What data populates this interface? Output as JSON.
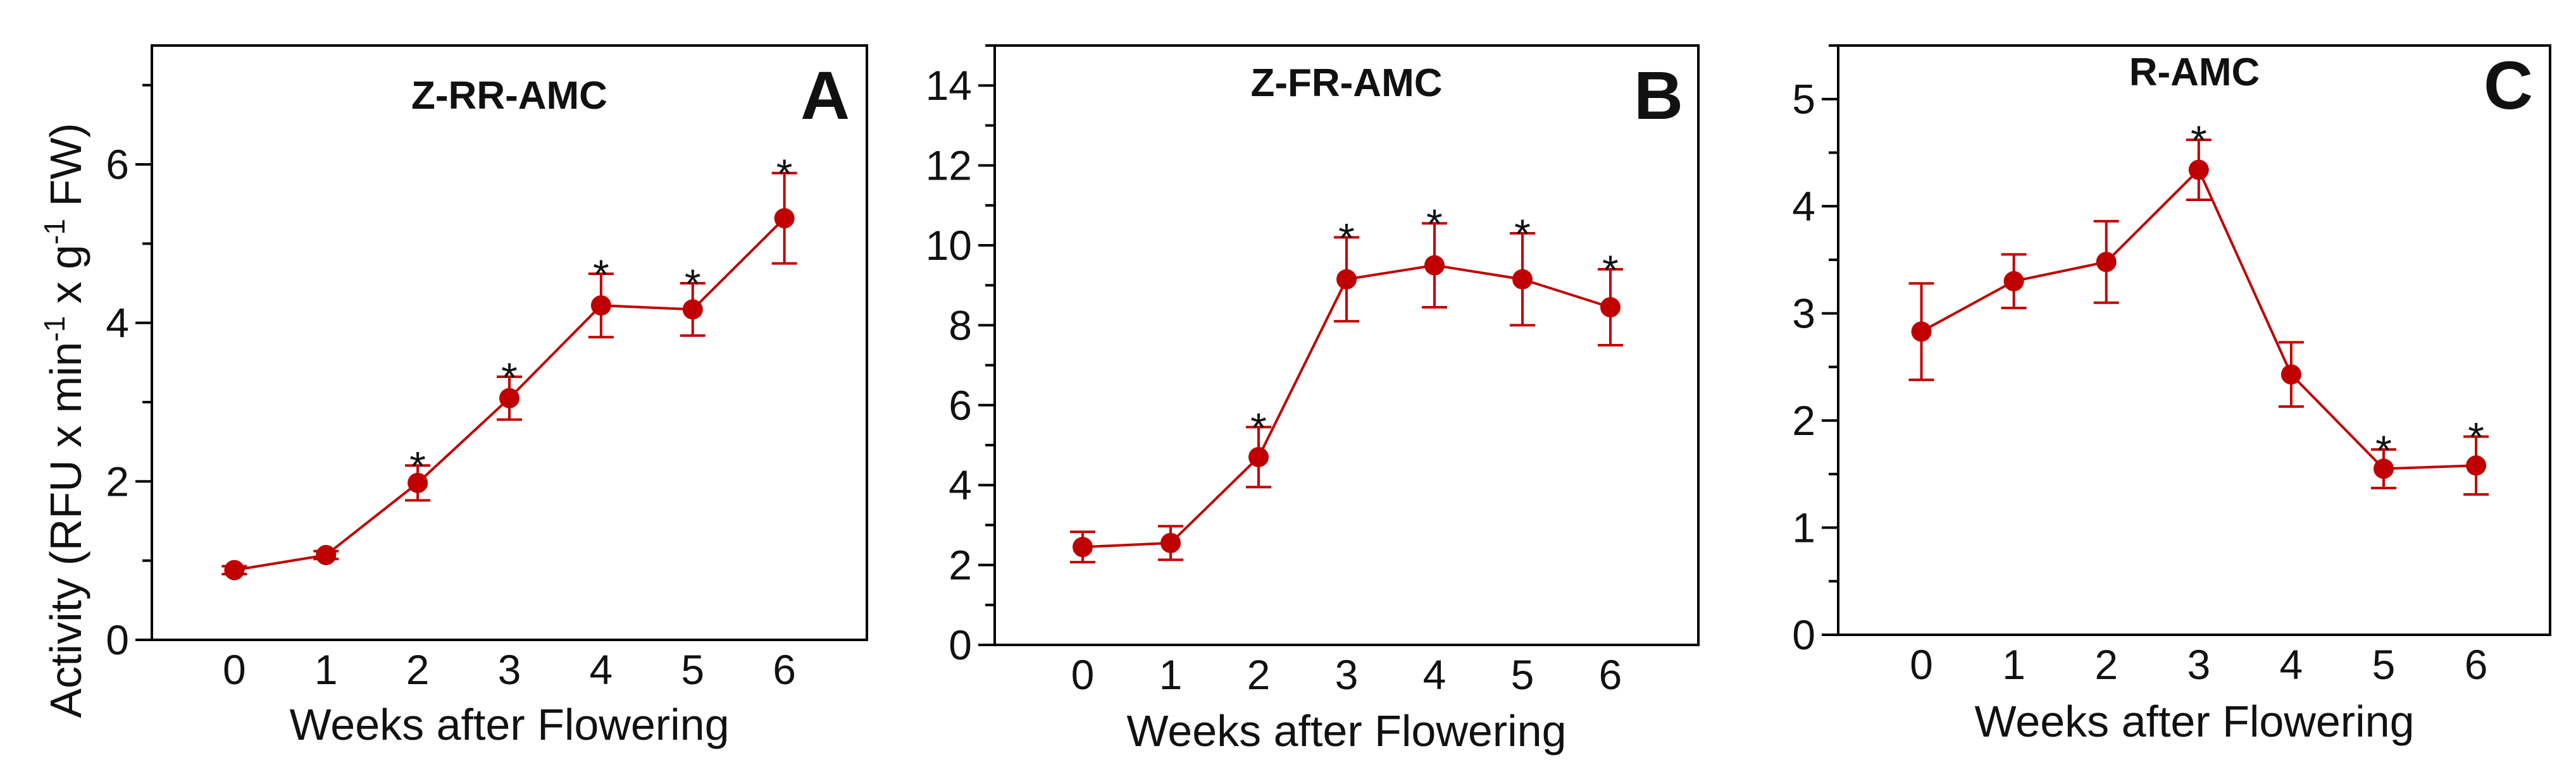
{
  "figure": {
    "ylabel_text": "Activity (RFU x min",
    "ylabel_sup1": "-1",
    "ylabel_mid": " x g",
    "ylabel_sup2": "-1",
    "ylabel_end": " FW)",
    "accent_color": "#c00000"
  },
  "chart_data": [
    {
      "type": "line",
      "panel": "A",
      "title": "Z-RR-AMC",
      "xlabel": "Weeks after Flowering",
      "ylabel": "Activity (RFU x min-1 x g-1 FW)",
      "xlim": [
        -0.9,
        6.9
      ],
      "ylim": [
        0,
        7.5
      ],
      "x_ticks": [
        0,
        1,
        2,
        3,
        4,
        5,
        6
      ],
      "y_ticks": [
        0,
        2,
        4,
        6
      ],
      "x": [
        0,
        1,
        2,
        3,
        4,
        5,
        6
      ],
      "values": [
        0.88,
        1.07,
        1.98,
        3.05,
        4.22,
        4.17,
        5.32
      ],
      "errors": [
        0.05,
        0.05,
        0.22,
        0.27,
        0.4,
        0.33,
        0.57
      ],
      "significant": [
        false,
        false,
        true,
        true,
        true,
        true,
        true
      ],
      "sig_symbol": "*"
    },
    {
      "type": "line",
      "panel": "B",
      "title": "Z-FR-AMC",
      "xlabel": "Weeks after Flowering",
      "ylabel": "",
      "xlim": [
        -1.0,
        7.0
      ],
      "ylim": [
        0,
        15
      ],
      "x_ticks": [
        0,
        1,
        2,
        3,
        4,
        5,
        6
      ],
      "y_ticks": [
        0,
        2,
        4,
        6,
        8,
        10,
        12,
        14
      ],
      "x": [
        0,
        1,
        2,
        3,
        4,
        5,
        6
      ],
      "values": [
        2.45,
        2.55,
        4.7,
        9.15,
        9.5,
        9.15,
        8.45
      ],
      "errors": [
        0.38,
        0.42,
        0.75,
        1.05,
        1.05,
        1.15,
        0.95
      ],
      "significant": [
        false,
        false,
        true,
        true,
        true,
        true,
        true
      ],
      "sig_symbol": "*"
    },
    {
      "type": "line",
      "panel": "C",
      "title": "R-AMC",
      "xlabel": "Weeks after Flowering",
      "ylabel": "",
      "xlim": [
        -0.9,
        6.8
      ],
      "ylim": [
        0,
        5.5
      ],
      "x_ticks": [
        0,
        1,
        2,
        3,
        4,
        5,
        6
      ],
      "y_ticks": [
        0,
        1,
        2,
        3,
        4,
        5
      ],
      "x": [
        0,
        1,
        2,
        3,
        4,
        5,
        6
      ],
      "values": [
        2.83,
        3.3,
        3.48,
        4.34,
        2.43,
        1.55,
        1.58
      ],
      "errors": [
        0.45,
        0.25,
        0.38,
        0.28,
        0.3,
        0.18,
        0.27
      ],
      "significant": [
        false,
        false,
        false,
        true,
        false,
        true,
        true
      ],
      "sig_symbol": "*"
    }
  ]
}
